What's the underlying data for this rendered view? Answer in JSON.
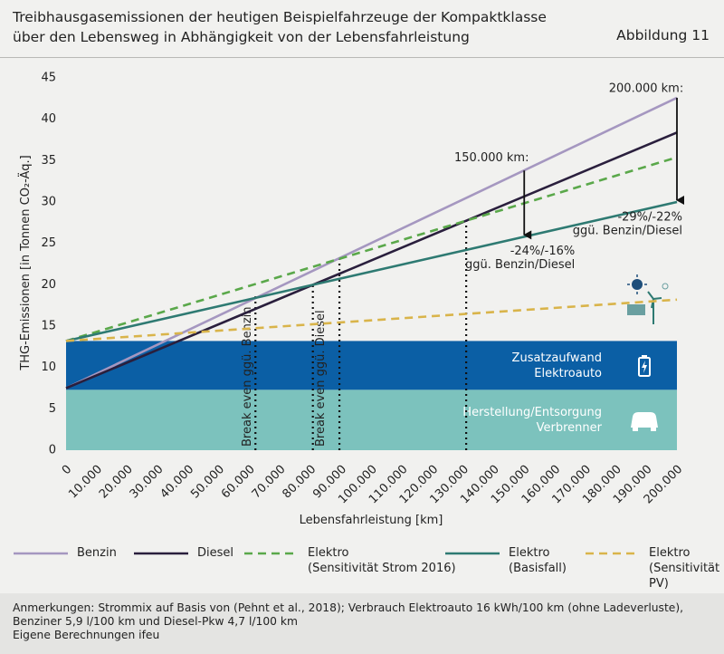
{
  "title": "Treibhausgasemissionen der heutigen Beispielfahrzeuge der Kompaktklasse\nüber den Lebensweg in Abhängigkeit von der Lebensfahrleistung",
  "figure_label": "Abbildung 11",
  "chart_data": {
    "type": "line",
    "x_label": "Lebensfahrleistung [km]",
    "y_label": "THG-Emissionen [in Tonnen CO₂-Äq.]",
    "x": [
      0,
      200000
    ],
    "xlim": [
      0,
      200000
    ],
    "xticks": [
      0,
      {
        "value": 10000,
        "label": "10.000"
      },
      {
        "value": 20000,
        "label": "20.000"
      },
      {
        "value": 30000,
        "label": "30.000"
      },
      {
        "value": 40000,
        "label": "40.000"
      },
      {
        "value": 50000,
        "label": "50.000"
      },
      {
        "value": 60000,
        "label": "60.000"
      },
      {
        "value": 70000,
        "label": "70.000"
      },
      {
        "value": 80000,
        "label": "80.000"
      },
      {
        "value": 90000,
        "label": "90.000"
      },
      {
        "value": 100000,
        "label": "100.000"
      },
      {
        "value": 110000,
        "label": "110.000"
      },
      {
        "value": 120000,
        "label": "120.000"
      },
      {
        "value": 130000,
        "label": "130.000"
      },
      {
        "value": 140000,
        "label": "140.000"
      },
      {
        "value": 150000,
        "label": "150.000"
      },
      {
        "value": 160000,
        "label": "160.000"
      },
      {
        "value": 170000,
        "label": "170.000"
      },
      {
        "value": 180000,
        "label": "180.000"
      },
      {
        "value": 190000,
        "label": "190.000"
      },
      {
        "value": 200000,
        "label": "200.000"
      }
    ],
    "ylim": [
      0,
      45
    ],
    "yticks": [
      0,
      5,
      10,
      15,
      20,
      25,
      30,
      35,
      40,
      45
    ],
    "grid": false,
    "bands": [
      {
        "from": 0,
        "to": 7.3,
        "color": "#7cc2bd",
        "label": [
          "Herstellung/Entsorgung",
          "Verbrenner"
        ]
      },
      {
        "from": 7.3,
        "to": 13.2,
        "color": "#0b5fa5",
        "label": [
          "Zusatzaufwand",
          "Elektroauto"
        ]
      }
    ],
    "series": [
      {
        "name": "Benzin",
        "color": "#a597c0",
        "dashed": false,
        "values": [
          7.5,
          42.6
        ]
      },
      {
        "name": "Diesel",
        "color": "#2a1f3d",
        "dashed": false,
        "values": [
          7.5,
          38.4
        ]
      },
      {
        "name": "Elektro\n(Sensitivität Strom 2016)",
        "color": "#5aa84a",
        "dashed": true,
        "values": [
          13.2,
          35.4
        ]
      },
      {
        "name": "Elektro\n(Basisfall)",
        "color": "#2e7a72",
        "dashed": false,
        "values": [
          13.2,
          30.0
        ]
      },
      {
        "name": "Elektro\n(Sensitivität PV)",
        "color": "#d9b44a",
        "dashed": true,
        "values": [
          13.2,
          18.2
        ]
      }
    ],
    "break_even": [
      {
        "x": 62000,
        "y": 18.6,
        "label": "Break even ggü. Benzin"
      },
      {
        "x": 80800,
        "y": 20.0,
        "label": "Break even ggü. Diesel"
      },
      {
        "x": 89500,
        "y": 23.3
      },
      {
        "x": 131000,
        "y": 27.8
      }
    ],
    "arrows": [
      {
        "x": 150000,
        "from": 33.8,
        "to": 25.8,
        "label": "150.000 km:",
        "note": [
          "-24%/-16%",
          "ggü. Benzin/Diesel"
        ]
      },
      {
        "x": 200000,
        "from": 42.6,
        "to": 30.0,
        "label": "200.000 km:",
        "note": [
          "-29%/-22%",
          "ggü. Benzin/Diesel"
        ]
      }
    ]
  },
  "footnote": "Anmerkungen: Strommix auf Basis von (Pehnt et al., 2018); Verbrauch Elektroauto 16 kWh/100 km (ohne Ladeverluste),\nBenziner 5,9 l/100 km und Diesel-Pkw 4,7 l/100 km\nEigene Berechnungen ifeu"
}
